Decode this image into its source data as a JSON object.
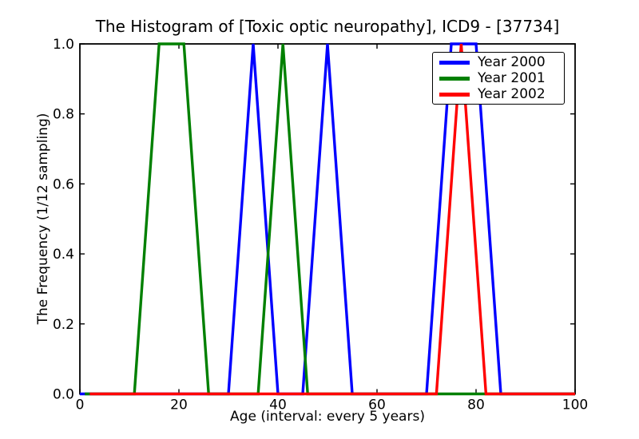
{
  "chart_data": {
    "type": "line",
    "title": "The Histogram of [Toxic optic neuropathy], ICD9 - [37734]",
    "xlabel": "Age (interval: every 5 years)",
    "ylabel": "The Frequency (1/12 sampling)",
    "xlim": [
      0,
      100
    ],
    "ylim": [
      0.0,
      1.0
    ],
    "xticks": [
      0,
      20,
      40,
      60,
      80,
      100
    ],
    "xtick_labels": [
      "0",
      "20",
      "40",
      "60",
      "80",
      "100"
    ],
    "yticks": [
      0.0,
      0.2,
      0.4,
      0.6,
      0.8,
      1.0
    ],
    "ytick_labels": [
      "0.0",
      "0.2",
      "0.4",
      "0.6",
      "0.8",
      "1.0"
    ],
    "grid": false,
    "legend_position": "upper right",
    "sampling_note": "values are 0 or 1 (frequency of 1/12 sampling); line vertices read from plot",
    "series": [
      {
        "name": "Year 2000",
        "color": "#0000ff",
        "points": [
          [
            0,
            0
          ],
          [
            30,
            0
          ],
          [
            35,
            1
          ],
          [
            40,
            0
          ],
          [
            45,
            0
          ],
          [
            50,
            1
          ],
          [
            55,
            0
          ],
          [
            70,
            0
          ],
          [
            75,
            1
          ],
          [
            80,
            1
          ],
          [
            85,
            0
          ],
          [
            100,
            0
          ]
        ]
      },
      {
        "name": "Year 2001",
        "color": "#008000",
        "points": [
          [
            1,
            0
          ],
          [
            11,
            0
          ],
          [
            16,
            1
          ],
          [
            21,
            1
          ],
          [
            26,
            0
          ],
          [
            36,
            0
          ],
          [
            41,
            1
          ],
          [
            46,
            0
          ],
          [
            100,
            0
          ]
        ]
      },
      {
        "name": "Year 2002",
        "color": "#ff0000",
        "points": [
          [
            2,
            0
          ],
          [
            72,
            0
          ],
          [
            77,
            1
          ],
          [
            82,
            0
          ],
          [
            100,
            0
          ]
        ]
      }
    ]
  }
}
